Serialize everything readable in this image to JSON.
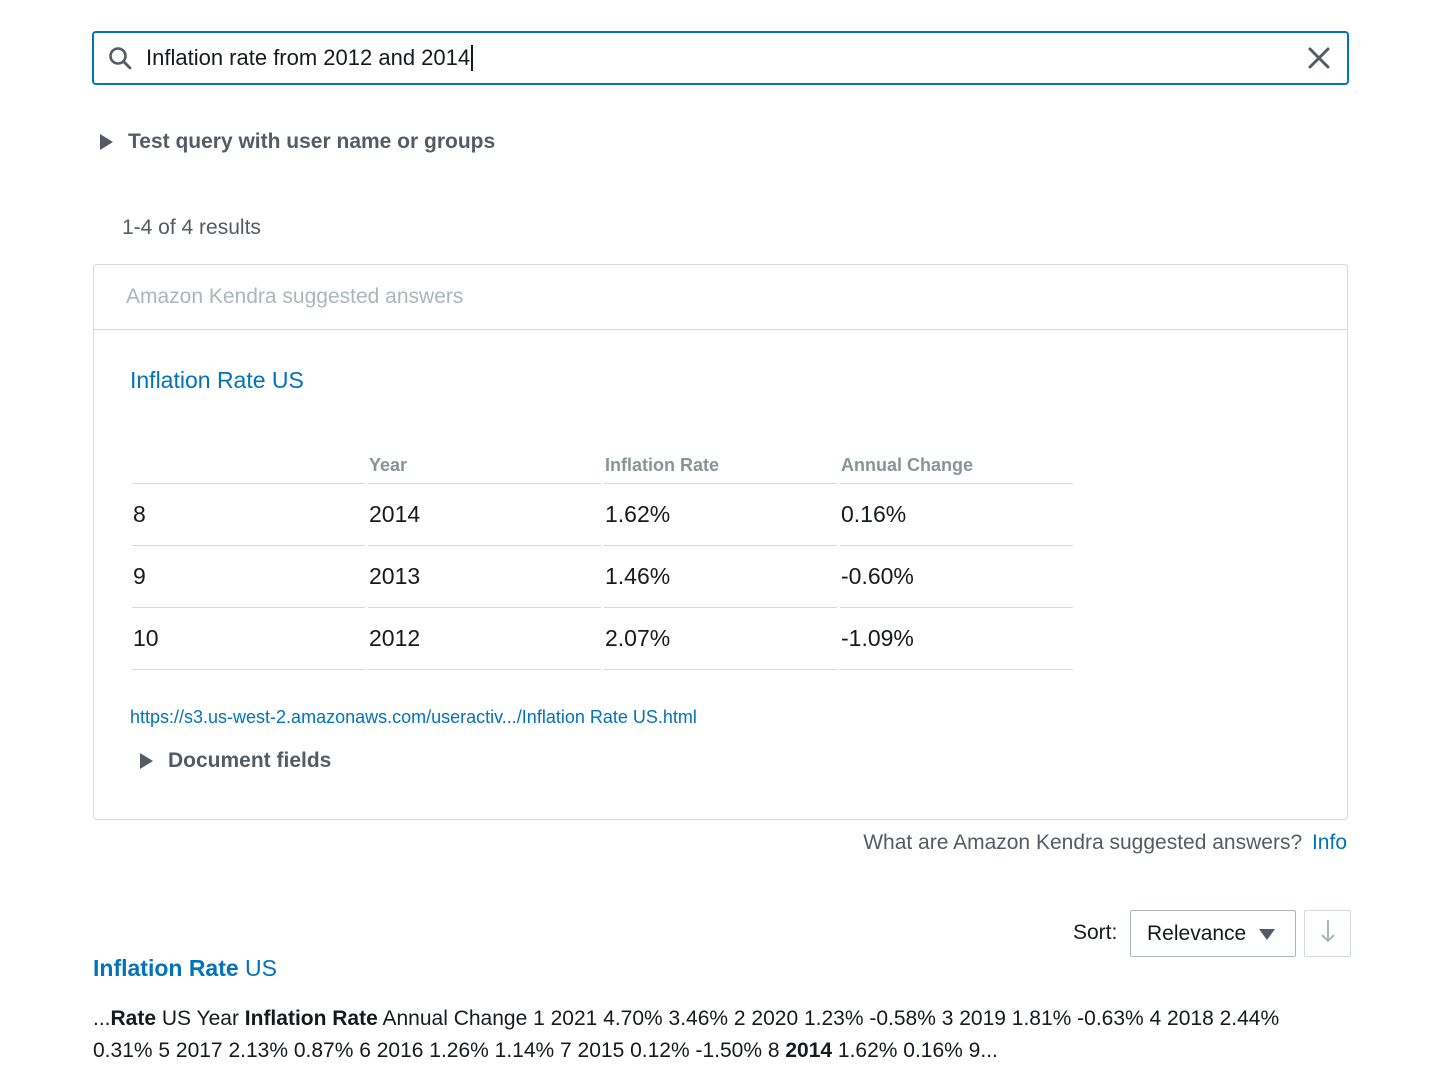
{
  "search": {
    "query": "Inflation rate from 2012 and 2014",
    "search_icon": "search-icon",
    "clear_icon": "close-icon",
    "focus_color": "#0073bb"
  },
  "test_query": {
    "label": "Test query with user name or groups"
  },
  "results_count": "1-4 of 4 results",
  "suggested_answers": {
    "header": "Amazon Kendra suggested answers",
    "answer_title": "Inflation Rate US",
    "table": {
      "headers": [
        "",
        "Year",
        "Inflation Rate",
        "Annual Change"
      ],
      "rows": [
        [
          "8",
          "2014",
          "1.62%",
          "0.16%"
        ],
        [
          "9",
          "2013",
          "1.46%",
          "-0.60%"
        ],
        [
          "10",
          "2012",
          "2.07%",
          "-1.09%"
        ]
      ]
    },
    "link": "https://s3.us-west-2.amazonaws.com/useractiv.../Inflation Rate US.html",
    "document_fields_label": "Document fields"
  },
  "suggest_help": {
    "question": "What are Amazon Kendra suggested answers?",
    "info": "Info"
  },
  "sort": {
    "label": "Sort:",
    "selected": "Relevance",
    "direction_icon": "arrow-down-icon"
  },
  "result": {
    "title_bold": "Inflation Rate",
    "title_rest": " US",
    "excerpt": [
      {
        "t": "...",
        "b": false
      },
      {
        "t": "Rate",
        "b": true
      },
      {
        "t": " US Year ",
        "b": false
      },
      {
        "t": "Inflation Rate",
        "b": true
      },
      {
        "t": " Annual Change 1 2021 4.70% 3.46% 2 2020 1.23% -0.58% 3 2019 1.81% -0.63% 4 2018 2.44% 0.31% 5 2017 2.13% 0.87% 6 2016 1.26% 1.14% 7 2015 0.12% -1.50% 8 ",
        "b": false
      },
      {
        "t": "2014",
        "b": true
      },
      {
        "t": " 1.62% 0.16% 9...",
        "b": false
      }
    ]
  },
  "colors": {
    "link": "#0073bb",
    "muted_text": "#545b64",
    "border": "#d5dbdb"
  }
}
